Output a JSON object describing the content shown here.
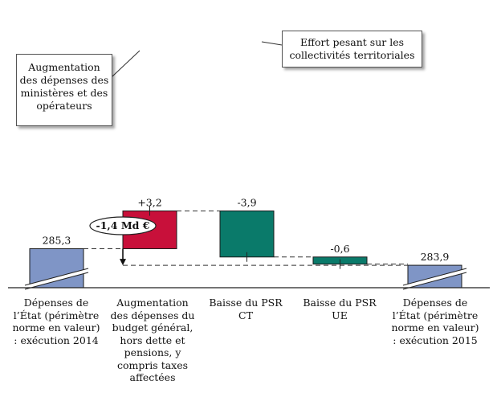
{
  "chart_data": {
    "type": "bar",
    "subtype": "waterfall",
    "categories": [
      "Dépenses de l’État (périmètre norme en valeur) : exécution 2014",
      "Augmentation des dépenses du budget général, hors dette et pensions, y compris taxes affectées",
      "Baisse du PSR CT",
      "Baisse du PSR UE",
      "Dépenses de l’État (périmètre norme en valeur) : exécution 2015"
    ],
    "category_lines": [
      [
        "Dépenses de",
        "l’État (périmètre",
        "norme en valeur)",
        ": exécution 2014"
      ],
      [
        "Augmentation",
        "des dépenses du",
        "budget général,",
        "hors dette et",
        "pensions, y",
        "compris taxes",
        "affectées"
      ],
      [
        "Baisse du PSR CT"
      ],
      [
        "Baisse du PSR UE"
      ],
      [
        "Dépenses de",
        "l’État (périmètre",
        "norme en valeur)",
        ": exécution 2015"
      ]
    ],
    "values": [
      285.3,
      3.2,
      -3.9,
      -0.6,
      283.9
    ],
    "value_labels": [
      "285,3",
      "+3,2",
      "-3,9",
      "-0,6",
      "283,9"
    ],
    "bar_kinds": [
      "total",
      "increase",
      "decrease",
      "decrease",
      "total"
    ],
    "axis_break": true,
    "net_change_label": "-1,4 Md €",
    "annotations": [
      {
        "id": "left",
        "text_lines": [
          "Augmentation",
          "des dépenses des",
          "ministères et des",
          "opérateurs"
        ],
        "points_to": 1
      },
      {
        "id": "right",
        "text_lines": [
          "Effort pesant sur les",
          "collectivités territoriales"
        ],
        "points_to": 2
      }
    ],
    "colors": {
      "total": "#7f95c6",
      "increase": "#c8103a",
      "decrease": "#0a7a6a",
      "outline": "#1a1a1a"
    },
    "grid": false
  }
}
